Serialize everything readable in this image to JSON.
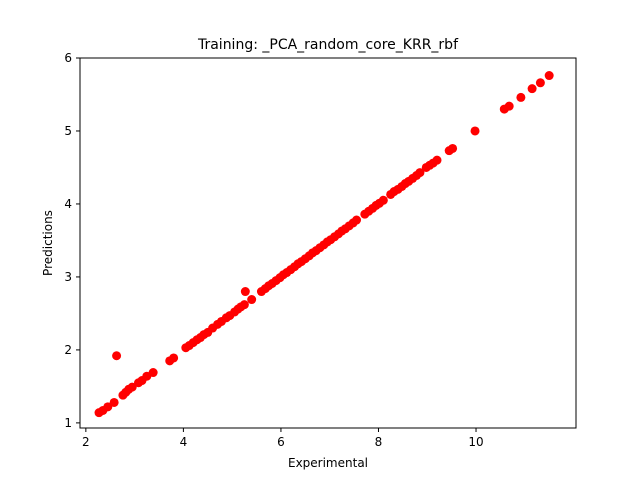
{
  "chart_data": {
    "type": "scatter",
    "title": "Training: _PCA_random_core_KRR_rbf",
    "xlabel": "Experimental",
    "ylabel": "Predictions",
    "xlim": [
      1.88,
      12.05
    ],
    "ylim": [
      0.93,
      6.0
    ],
    "xticks": [
      2,
      4,
      6,
      8,
      10
    ],
    "yticks": [
      1,
      2,
      3,
      4,
      5,
      6
    ],
    "xtick_labels": [
      "2",
      "4",
      "6",
      "8",
      "10"
    ],
    "ytick_labels": [
      "1",
      "2",
      "3",
      "4",
      "5",
      "6"
    ],
    "grid": false,
    "marker_color": "#ff0000",
    "series": [
      {
        "points": [
          [
            2.27,
            1.14
          ],
          [
            2.35,
            1.17
          ],
          [
            2.45,
            1.22
          ],
          [
            2.58,
            1.28
          ],
          [
            2.63,
            1.92
          ],
          [
            2.76,
            1.38
          ],
          [
            2.82,
            1.42
          ],
          [
            2.88,
            1.46
          ],
          [
            2.95,
            1.49
          ],
          [
            3.08,
            1.55
          ],
          [
            3.15,
            1.58
          ],
          [
            3.25,
            1.64
          ],
          [
            3.38,
            1.69
          ],
          [
            3.72,
            1.85
          ],
          [
            3.8,
            1.89
          ],
          [
            4.05,
            2.03
          ],
          [
            4.12,
            2.06
          ],
          [
            4.2,
            2.1
          ],
          [
            4.28,
            2.14
          ],
          [
            4.35,
            2.17
          ],
          [
            4.42,
            2.21
          ],
          [
            4.5,
            2.24
          ],
          [
            4.6,
            2.3
          ],
          [
            4.7,
            2.35
          ],
          [
            4.78,
            2.39
          ],
          [
            4.88,
            2.44
          ],
          [
            4.95,
            2.47
          ],
          [
            5.05,
            2.52
          ],
          [
            5.12,
            2.56
          ],
          [
            5.18,
            2.59
          ],
          [
            5.25,
            2.62
          ],
          [
            5.27,
            2.8
          ],
          [
            5.4,
            2.69
          ],
          [
            5.6,
            2.8
          ],
          [
            5.68,
            2.84
          ],
          [
            5.75,
            2.88
          ],
          [
            5.82,
            2.91
          ],
          [
            5.9,
            2.95
          ],
          [
            5.98,
            2.99
          ],
          [
            6.05,
            3.03
          ],
          [
            6.12,
            3.06
          ],
          [
            6.2,
            3.1
          ],
          [
            6.28,
            3.14
          ],
          [
            6.35,
            3.18
          ],
          [
            6.42,
            3.21
          ],
          [
            6.5,
            3.25
          ],
          [
            6.58,
            3.29
          ],
          [
            6.65,
            3.33
          ],
          [
            6.72,
            3.36
          ],
          [
            6.8,
            3.4
          ],
          [
            6.88,
            3.44
          ],
          [
            6.95,
            3.48
          ],
          [
            7.02,
            3.51
          ],
          [
            7.1,
            3.55
          ],
          [
            7.18,
            3.59
          ],
          [
            7.25,
            3.63
          ],
          [
            7.32,
            3.66
          ],
          [
            7.4,
            3.7
          ],
          [
            7.48,
            3.74
          ],
          [
            7.55,
            3.78
          ],
          [
            7.72,
            3.86
          ],
          [
            7.8,
            3.9
          ],
          [
            7.88,
            3.94
          ],
          [
            7.95,
            3.98
          ],
          [
            8.02,
            4.01
          ],
          [
            8.1,
            4.05
          ],
          [
            8.25,
            4.13
          ],
          [
            8.32,
            4.17
          ],
          [
            8.4,
            4.2
          ],
          [
            8.48,
            4.24
          ],
          [
            8.55,
            4.28
          ],
          [
            8.62,
            4.31
          ],
          [
            8.7,
            4.35
          ],
          [
            8.78,
            4.39
          ],
          [
            8.85,
            4.43
          ],
          [
            8.98,
            4.5
          ],
          [
            9.05,
            4.53
          ],
          [
            9.12,
            4.56
          ],
          [
            9.2,
            4.6
          ],
          [
            9.45,
            4.73
          ],
          [
            9.52,
            4.76
          ],
          [
            9.98,
            5.0
          ],
          [
            10.58,
            5.3
          ],
          [
            10.68,
            5.34
          ],
          [
            10.92,
            5.46
          ],
          [
            11.15,
            5.58
          ],
          [
            11.32,
            5.66
          ],
          [
            11.5,
            5.76
          ]
        ]
      }
    ]
  }
}
